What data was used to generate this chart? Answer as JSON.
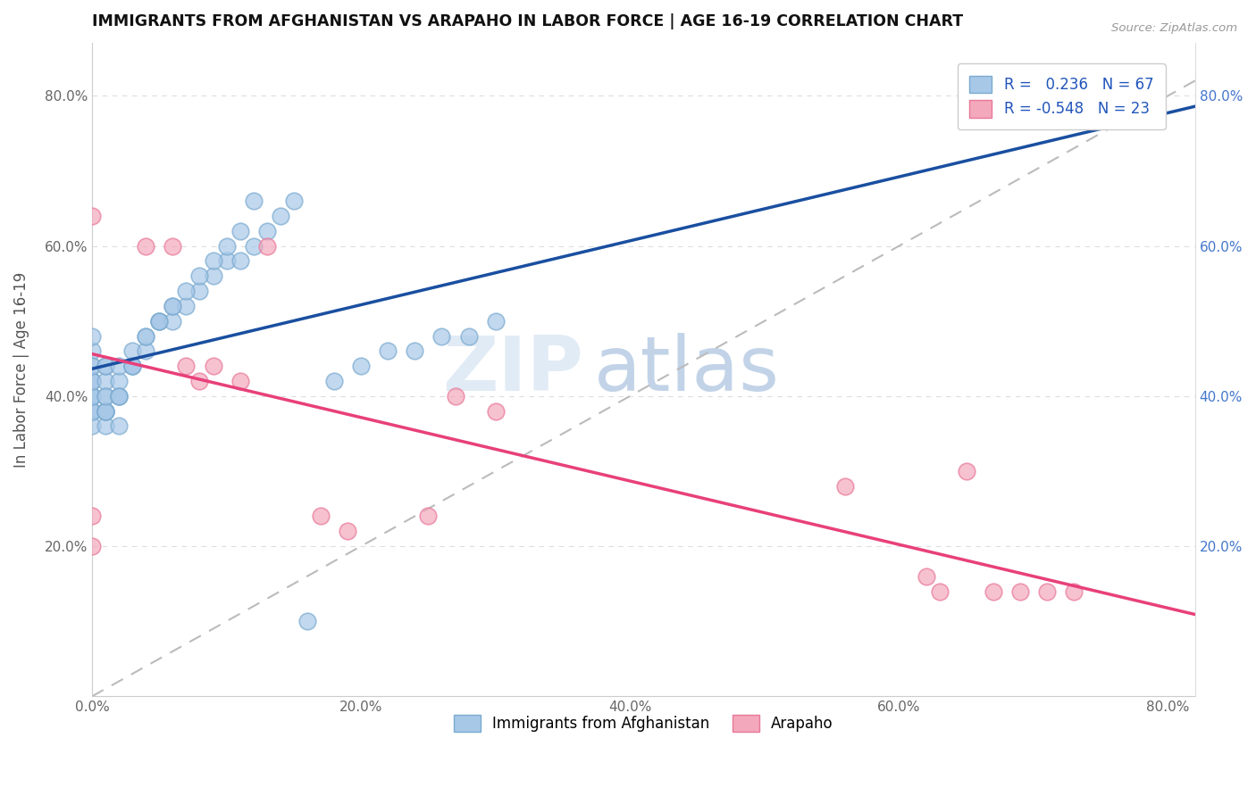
{
  "title": "IMMIGRANTS FROM AFGHANISTAN VS ARAPAHO IN LABOR FORCE | AGE 16-19 CORRELATION CHART",
  "source": "Source: ZipAtlas.com",
  "ylabel": "In Labor Force | Age 16-19",
  "xlim": [
    0.0,
    0.82
  ],
  "ylim": [
    0.0,
    0.87
  ],
  "x_ticks": [
    0.0,
    0.2,
    0.4,
    0.6,
    0.8
  ],
  "x_tick_labels": [
    "0.0%",
    "20.0%",
    "40.0%",
    "60.0%",
    "80.0%"
  ],
  "y_ticks": [
    0.0,
    0.2,
    0.4,
    0.6,
    0.8
  ],
  "y_tick_labels": [
    "",
    "20.0%",
    "40.0%",
    "60.0%",
    "80.0%"
  ],
  "right_y_ticks": [
    0.2,
    0.4,
    0.6,
    0.8
  ],
  "right_y_tick_labels": [
    "20.0%",
    "40.0%",
    "60.0%",
    "80.0%"
  ],
  "afghanistan_color": "#a8c8e8",
  "arapaho_color": "#f4a8bc",
  "afghanistan_edge_color": "#7aaad0",
  "arapaho_edge_color": "#e87898",
  "afghanistan_line_color": "#1a4fa0",
  "arapaho_line_color": "#e8407a",
  "dashed_line_color": "#bbbbbb",
  "R_afghanistan": 0.236,
  "N_afghanistan": 67,
  "R_arapaho": -0.548,
  "N_arapaho": 23,
  "legend_label_afghanistan": "Immigrants from Afghanistan",
  "legend_label_arapaho": "Arapaho",
  "afghanistan_x": [
    0.0,
    0.0,
    0.0,
    0.0,
    0.0,
    0.0,
    0.0,
    0.0,
    0.0,
    0.0,
    0.0,
    0.0,
    0.0,
    0.0,
    0.0,
    0.01,
    0.01,
    0.01,
    0.01,
    0.01,
    0.01,
    0.01,
    0.01,
    0.01,
    0.01,
    0.02,
    0.02,
    0.02,
    0.02,
    0.02,
    0.02,
    0.03,
    0.03,
    0.03,
    0.03,
    0.04,
    0.04,
    0.04,
    0.05,
    0.05,
    0.06,
    0.06,
    0.07,
    0.08,
    0.09,
    0.1,
    0.11,
    0.12,
    0.13,
    0.14,
    0.15,
    0.16,
    0.18,
    0.2,
    0.22,
    0.24,
    0.26,
    0.28,
    0.3,
    0.05,
    0.06,
    0.07,
    0.08,
    0.09,
    0.1,
    0.11,
    0.12
  ],
  "afghanistan_y": [
    0.38,
    0.38,
    0.4,
    0.4,
    0.4,
    0.42,
    0.42,
    0.44,
    0.46,
    0.48,
    0.36,
    0.38,
    0.4,
    0.42,
    0.44,
    0.36,
    0.38,
    0.38,
    0.4,
    0.42,
    0.44,
    0.38,
    0.38,
    0.4,
    0.44,
    0.36,
    0.4,
    0.42,
    0.4,
    0.44,
    0.4,
    0.44,
    0.44,
    0.44,
    0.46,
    0.46,
    0.48,
    0.48,
    0.5,
    0.5,
    0.5,
    0.52,
    0.52,
    0.54,
    0.56,
    0.58,
    0.58,
    0.6,
    0.62,
    0.64,
    0.66,
    0.1,
    0.42,
    0.44,
    0.46,
    0.46,
    0.48,
    0.48,
    0.5,
    0.5,
    0.52,
    0.54,
    0.56,
    0.58,
    0.6,
    0.62,
    0.66
  ],
  "arapaho_x": [
    0.0,
    0.0,
    0.0,
    0.04,
    0.06,
    0.07,
    0.08,
    0.09,
    0.11,
    0.13,
    0.17,
    0.19,
    0.25,
    0.27,
    0.3,
    0.56,
    0.62,
    0.63,
    0.65,
    0.67,
    0.69,
    0.71,
    0.73
  ],
  "arapaho_y": [
    0.2,
    0.24,
    0.64,
    0.6,
    0.6,
    0.44,
    0.42,
    0.44,
    0.42,
    0.6,
    0.24,
    0.22,
    0.24,
    0.4,
    0.38,
    0.28,
    0.16,
    0.14,
    0.3,
    0.14,
    0.14,
    0.14,
    0.14
  ]
}
